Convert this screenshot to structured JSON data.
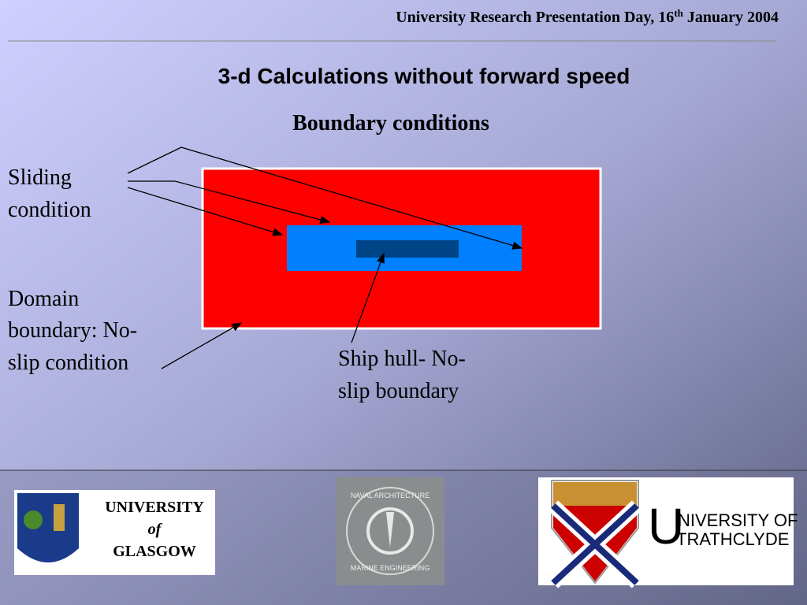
{
  "header": {
    "before": "University Research Presentation Day, 16",
    "sup": "th",
    "after": " January 2004"
  },
  "title": "3-d Calculations without forward speed",
  "subtitle": "Boundary conditions",
  "labels": {
    "sliding": [
      "Sliding",
      "condition"
    ],
    "domain": [
      "Domain",
      "boundary: No-",
      "slip condition"
    ],
    "hull": [
      "Ship hull- No-",
      "slip boundary"
    ]
  },
  "logos": {
    "glasgow": [
      "UNIVERSITY",
      "of",
      "GLASGOW"
    ],
    "naval": [
      "NAVAL ARCHITECTURE",
      "MARINE ENGINEERING"
    ],
    "strathclyde": [
      "NIVERSITY OF",
      "TRATHCLYDE"
    ]
  }
}
